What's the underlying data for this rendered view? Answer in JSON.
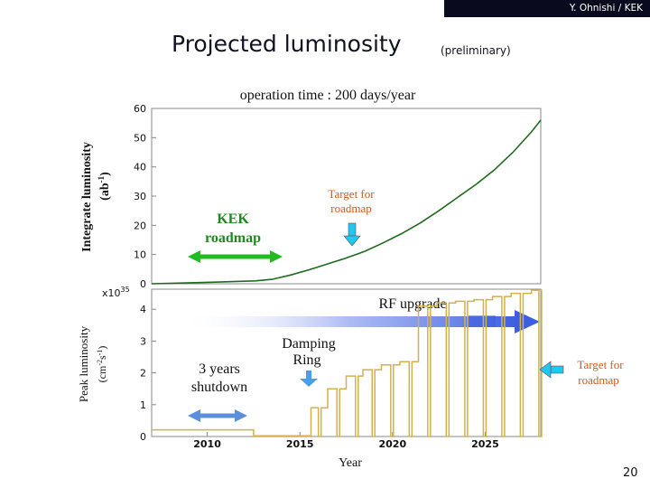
{
  "header": {
    "author": "Y. Ohnishi / KEK",
    "title": "Projected luminosity",
    "subtitle": "(preliminary)",
    "page_number": "20"
  },
  "colors": {
    "panel_border": "#888888",
    "integrated_curve": "#1e6b1e",
    "peak_curve": "#d4b14a",
    "green_arrow": "#22bb22",
    "cyan_arrow": "#1ec8ee",
    "blue_arrow": "#5b8fdc"
  },
  "chart_data": [
    {
      "type": "line",
      "title": "operation time : 200 days/year",
      "ylabel_line1": "Integrate luminosity",
      "ylabel_line2": "(ab",
      "ylabel_sup": "-1",
      "ylabel_end": ")",
      "ylim": [
        0,
        60
      ],
      "yticks": [
        "0",
        "10",
        "20",
        "30",
        "40",
        "50",
        "60"
      ],
      "xlim": [
        2007,
        2028
      ],
      "grid": false,
      "series": [
        {
          "x": [
            2007,
            2010,
            2012.6,
            2013.5,
            2014.5,
            2015.5,
            2016.5,
            2017.5,
            2018.5,
            2019.5,
            2020.5,
            2021.5,
            2022.5,
            2023.5,
            2024.5,
            2025.5,
            2026.5,
            2027.5,
            2028
          ],
          "values": [
            0,
            0.5,
            1,
            1.5,
            3,
            4.8,
            6.8,
            8.8,
            11.1,
            14,
            17.2,
            20.8,
            25,
            29.5,
            34,
            39,
            45,
            52,
            56
          ]
        }
      ],
      "annotations": {
        "kek_roadmap_line1": "KEK",
        "kek_roadmap_line2": "roadmap",
        "target_line1": "Target for",
        "target_line2": "roadmap"
      }
    },
    {
      "type": "line",
      "scale_label": "x10",
      "scale_exp": "35",
      "ylabel_line1": "Peak luminosity",
      "ylabel_line2": "(cm",
      "ylabel_sup1": "-2",
      "ylabel_mid": "s",
      "ylabel_sup2": "-1",
      "ylabel_end": ")",
      "xlabel": "Year",
      "ylim": [
        0,
        5
      ],
      "yticks": [
        "0",
        "1",
        "2",
        "3",
        "4"
      ],
      "xlim": [
        2007,
        2028
      ],
      "xticks": [
        "2010",
        "2015",
        "2020",
        "2025"
      ],
      "xtick_values": [
        2010,
        2015,
        2020,
        2025
      ],
      "grid": false,
      "series": [
        {
          "steps": [
            [
              2007,
              0.21
            ],
            [
              2012.5,
              0.21
            ],
            [
              2012.5,
              0.02
            ],
            [
              2015.6,
              0.02
            ],
            [
              2015.6,
              0.9
            ],
            [
              2016.5,
              0.9
            ],
            [
              2016.5,
              1.5
            ],
            [
              2017.5,
              1.5
            ],
            [
              2017.5,
              1.9
            ],
            [
              2018.4,
              1.9
            ],
            [
              2018.4,
              2.1
            ],
            [
              2019.4,
              2.1
            ],
            [
              2019.4,
              2.25
            ],
            [
              2020.4,
              2.25
            ],
            [
              2020.4,
              2.35
            ],
            [
              2021.4,
              2.35
            ],
            [
              2021.4,
              4.1
            ],
            [
              2022.4,
              4.1
            ],
            [
              2022.4,
              4.2
            ],
            [
              2023.4,
              4.2
            ],
            [
              2023.4,
              4.25
            ],
            [
              2024.4,
              4.25
            ],
            [
              2024.4,
              4.3
            ],
            [
              2025.4,
              4.3
            ],
            [
              2025.4,
              4.4
            ],
            [
              2026.4,
              4.4
            ],
            [
              2026.4,
              4.5
            ],
            [
              2027.5,
              4.5
            ],
            [
              2027.5,
              4.6
            ],
            [
              2028,
              4.6
            ]
          ],
          "shutdown_drops": [
            2016.0,
            2017.0,
            2018.0,
            2018.9,
            2019.9,
            2020.9,
            2021.9,
            2022.9,
            2023.9,
            2024.9,
            2025.9,
            2026.9,
            2027.9
          ]
        }
      ],
      "annotations": {
        "rf_upgrade": "RF upgrade",
        "damping_ring_line1": "Damping",
        "damping_ring_line2": "Ring",
        "shutdown_line1": "3 years",
        "shutdown_line2": "shutdown",
        "target_line1": "Target for",
        "target_line2": "roadmap"
      }
    }
  ]
}
